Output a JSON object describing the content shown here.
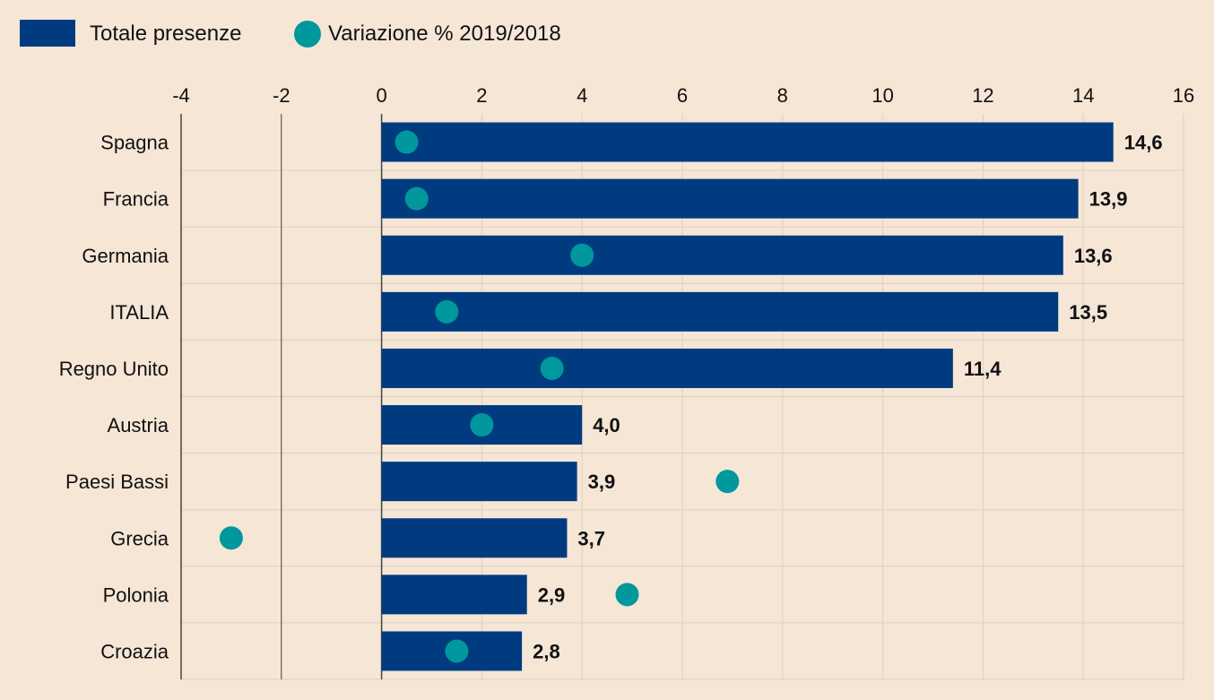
{
  "legend": {
    "bar_label": "Totale presenze",
    "dot_label": "Variazione % 2019/2018"
  },
  "colors": {
    "bar": "#003b80",
    "dot": "#00979d",
    "grid": "#e0cfbf",
    "axis": "#444444",
    "background": "#f5e6d6"
  },
  "chart_data": {
    "type": "bar",
    "orientation": "horizontal",
    "categories": [
      "Spagna",
      "Francia",
      "Germania",
      "ITALIA",
      "Regno Unito",
      "Austria",
      "Paesi Bassi",
      "Grecia",
      "Polonia",
      "Croazia"
    ],
    "series": [
      {
        "name": "Totale presenze",
        "mark": "bar",
        "values": [
          14.6,
          13.9,
          13.6,
          13.5,
          11.4,
          4.0,
          3.9,
          3.7,
          2.9,
          2.8
        ],
        "labels": [
          "14,6",
          "13,9",
          "13,6",
          "13,5",
          "11,4",
          "4,0",
          "3,9",
          "3,7",
          "2,9",
          "2,8"
        ]
      },
      {
        "name": "Variazione % 2019/2018",
        "mark": "dot",
        "values": [
          0.5,
          0.7,
          4.0,
          1.3,
          3.4,
          2.0,
          6.9,
          -3.0,
          4.9,
          1.5
        ]
      }
    ],
    "xlim": [
      -4,
      16
    ],
    "xticks": [
      -4,
      -2,
      0,
      2,
      4,
      6,
      8,
      10,
      12,
      14,
      16
    ],
    "xtick_labels": [
      "-4",
      "-2",
      "0",
      "2",
      "4",
      "6",
      "8",
      "10",
      "12",
      "14",
      "16"
    ],
    "title": "",
    "xlabel": "",
    "ylabel": "",
    "grid": true,
    "legend_position": "top-left"
  }
}
